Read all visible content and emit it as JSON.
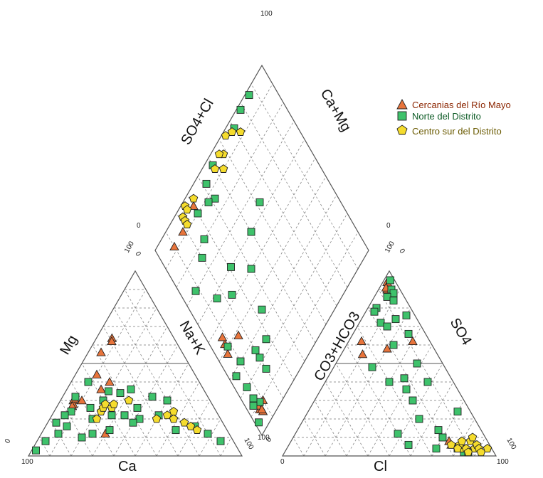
{
  "chart_data": {
    "type": "scatter",
    "subtype": "piper-diagram",
    "title": "",
    "series": [
      {
        "name": "Cercanias del Río Mayo",
        "marker": "triangle",
        "color": "#e8743b",
        "text_color": "#8b2500",
        "points": [
          {
            "ca": 64,
            "mg": 30,
            "na": 6,
            "hco3": 92,
            "so4": 3,
            "cl": 5
          },
          {
            "ca": 65,
            "mg": 28,
            "na": 7,
            "hco3": 94,
            "so4": 2,
            "cl": 4
          },
          {
            "ca": 63,
            "mg": 31,
            "na": 6,
            "hco3": 90,
            "so4": 4,
            "cl": 6
          },
          {
            "ca": 66,
            "mg": 27,
            "na": 7,
            "hco3": 93,
            "so4": 3,
            "cl": 4
          },
          {
            "ca": 60,
            "mg": 30,
            "na": 10,
            "hco3": 91,
            "so4": 3,
            "cl": 6
          },
          {
            "ca": 48,
            "mg": 36,
            "na": 16,
            "hco3": 62,
            "so4": 30,
            "cl": 8
          },
          {
            "ca": 32,
            "mg": 70,
            "na": 8,
            "hco3": 58,
            "so4": 20,
            "cl": 22
          },
          {
            "ca": 30,
            "mg": 62,
            "na": 8,
            "hco3": 55,
            "so4": 10,
            "cl": 35
          },
          {
            "ca": 38,
            "mg": 56,
            "na": 6,
            "hco3": 62,
            "so4": 6,
            "cl": 32
          },
          {
            "ca": 46,
            "mg": 44,
            "na": 10,
            "hco3": 8,
            "so4": 74,
            "cl": 18
          },
          {
            "ca": 42,
            "mg": 40,
            "na": 18,
            "hco3": 8,
            "so4": 74,
            "cl": 18
          },
          {
            "ca": 58,
            "mg": 12,
            "na": 30,
            "hco3": 6,
            "so4": 76,
            "cl": 18
          }
        ]
      },
      {
        "name": "Norte del Distrito",
        "marker": "square",
        "color": "#3ec26b",
        "text_color": "#0b5a24",
        "points": [
          {
            "ca": 95,
            "mg": 3,
            "na": 2,
            "hco3": 95,
            "so4": 3,
            "cl": 2
          },
          {
            "ca": 88,
            "mg": 8,
            "na": 4,
            "hco3": 72,
            "so4": 10,
            "cl": 18
          },
          {
            "ca": 74,
            "mg": 16,
            "na": 10,
            "hco3": 70,
            "so4": 14,
            "cl": 16
          },
          {
            "ca": 68,
            "mg": 24,
            "na": 8,
            "hco3": 60,
            "so4": 22,
            "cl": 18
          },
          {
            "ca": 64,
            "mg": 12,
            "na": 24,
            "hco3": 48,
            "so4": 18,
            "cl": 34
          },
          {
            "ca": 58,
            "mg": 26,
            "na": 16,
            "hco3": 42,
            "so4": 36,
            "cl": 22
          },
          {
            "ca": 55,
            "mg": 14,
            "na": 31,
            "hco3": 40,
            "so4": 30,
            "cl": 30
          },
          {
            "ca": 52,
            "mg": 40,
            "na": 8,
            "hco3": 30,
            "so4": 46,
            "cl": 24
          },
          {
            "ca": 45,
            "mg": 35,
            "na": 20,
            "hco3": 24,
            "so4": 70,
            "cl": 6
          },
          {
            "ca": 40,
            "mg": 34,
            "na": 26,
            "hco3": 20,
            "so4": 54,
            "cl": 26
          },
          {
            "ca": 38,
            "mg": 20,
            "na": 42,
            "hco3": 14,
            "so4": 66,
            "cl": 20
          },
          {
            "ca": 36,
            "mg": 26,
            "na": 38,
            "hco3": 12,
            "so4": 48,
            "cl": 40
          },
          {
            "ca": 34,
            "mg": 36,
            "na": 30,
            "hco3": 10,
            "so4": 70,
            "cl": 20
          },
          {
            "ca": 26,
            "mg": 32,
            "na": 42,
            "hco3": 6,
            "so4": 56,
            "cl": 38
          },
          {
            "ca": 20,
            "mg": 30,
            "na": 50,
            "hco3": 4,
            "so4": 70,
            "cl": 26
          },
          {
            "ca": 14,
            "mg": 16,
            "na": 70,
            "hco3": 4,
            "so4": 80,
            "cl": 16
          },
          {
            "ca": 10,
            "mg": 12,
            "na": 78,
            "hco3": 2,
            "so4": 84,
            "cl": 14
          },
          {
            "ca": 6,
            "mg": 8,
            "na": 86,
            "hco3": 2,
            "so4": 86,
            "cl": 12
          },
          {
            "ca": 80,
            "mg": 12,
            "na": 8,
            "hco3": 90,
            "so4": 6,
            "cl": 4
          },
          {
            "ca": 78,
            "mg": 18,
            "na": 4,
            "hco3": 88,
            "so4": 8,
            "cl": 4
          },
          {
            "ca": 72,
            "mg": 22,
            "na": 6,
            "hco3": 86,
            "so4": 6,
            "cl": 8
          },
          {
            "ca": 70,
            "mg": 10,
            "na": 20,
            "hco3": 84,
            "so4": 10,
            "cl": 6
          },
          {
            "ca": 62,
            "mg": 32,
            "na": 6,
            "hco3": 80,
            "so4": 4,
            "cl": 16
          },
          {
            "ca": 60,
            "mg": 20,
            "na": 20,
            "hco3": 78,
            "so4": 4,
            "cl": 18
          },
          {
            "ca": 50,
            "mg": 22,
            "na": 28,
            "hco3": 76,
            "so4": 20,
            "cl": 4
          },
          {
            "ca": 50,
            "mg": 30,
            "na": 20,
            "hco3": 74,
            "so4": 16,
            "cl": 10
          },
          {
            "ca": 44,
            "mg": 22,
            "na": 34,
            "hco3": 66,
            "so4": 26,
            "cl": 8
          },
          {
            "ca": 42,
            "mg": 18,
            "na": 40,
            "hco3": 50,
            "so4": 38,
            "cl": 12
          },
          {
            "ca": 28,
            "mg": 22,
            "na": 50,
            "hco3": 40,
            "so4": 48,
            "cl": 12
          },
          {
            "ca": 24,
            "mg": 14,
            "na": 62,
            "hco3": 36,
            "so4": 40,
            "cl": 24
          }
        ]
      },
      {
        "name": "Centro sur del Distrito",
        "marker": "pentagon",
        "color": "#f5dc2d",
        "text_color": "#6a5a00",
        "points": [
          {
            "ca": 54,
            "mg": 24,
            "na": 22,
            "hco3": 4,
            "so4": 82,
            "cl": 14
          },
          {
            "ca": 52,
            "mg": 26,
            "na": 22,
            "hco3": 4,
            "so4": 84,
            "cl": 12
          },
          {
            "ca": 50,
            "mg": 28,
            "na": 22,
            "hco3": 6,
            "so4": 80,
            "cl": 14
          },
          {
            "ca": 48,
            "mg": 26,
            "na": 26,
            "hco3": 2,
            "so4": 86,
            "cl": 12
          },
          {
            "ca": 46,
            "mg": 28,
            "na": 26,
            "hco3": 4,
            "so4": 88,
            "cl": 8
          },
          {
            "ca": 58,
            "mg": 20,
            "na": 22,
            "hco3": 8,
            "so4": 84,
            "cl": 8
          },
          {
            "ca": 38,
            "mg": 30,
            "na": 32,
            "hco3": 4,
            "so4": 80,
            "cl": 16
          },
          {
            "ca": 30,
            "mg": 20,
            "na": 50,
            "hco3": 6,
            "so4": 76,
            "cl": 18
          },
          {
            "ca": 24,
            "mg": 22,
            "na": 54,
            "hco3": 10,
            "so4": 84,
            "cl": 6
          },
          {
            "ca": 22,
            "mg": 20,
            "na": 58,
            "hco3": 6,
            "so4": 88,
            "cl": 6
          },
          {
            "ca": 20,
            "mg": 24,
            "na": 56,
            "hco3": 4,
            "so4": 90,
            "cl": 6
          },
          {
            "ca": 18,
            "mg": 18,
            "na": 64,
            "hco3": 2,
            "so4": 92,
            "cl": 6
          },
          {
            "ca": 16,
            "mg": 16,
            "na": 68,
            "hco3": 4,
            "so4": 94,
            "cl": 2
          },
          {
            "ca": 14,
            "mg": 14,
            "na": 72,
            "hco3": 8,
            "so4": 80,
            "cl": 12
          }
        ]
      }
    ],
    "axes": {
      "cation_bottom": "Ca",
      "cation_left": "Mg",
      "cation_right": "Na+K",
      "anion_bottom": "Cl",
      "anion_left": "CO3+HCO3",
      "anion_right": "SO4",
      "diamond_left": "SO4+Cl",
      "diamond_right": "Ca+Mg"
    },
    "ticks": {
      "cation_ca_start": "100",
      "cation_mg_top": "100",
      "cation_mg_zero": "0",
      "cation_na_top": "0",
      "cation_na_end": "100",
      "anion_cl_start": "0",
      "anion_cl_end": "100",
      "anion_hco3_top": "100",
      "anion_hco3_zero": "0",
      "anion_so4_top": "0",
      "anion_so4_end": "100",
      "diamond_top": "100",
      "diamond_left": "0",
      "diamond_right": "0",
      "diamond_bottom": "100"
    },
    "legend_position": "top-right"
  }
}
